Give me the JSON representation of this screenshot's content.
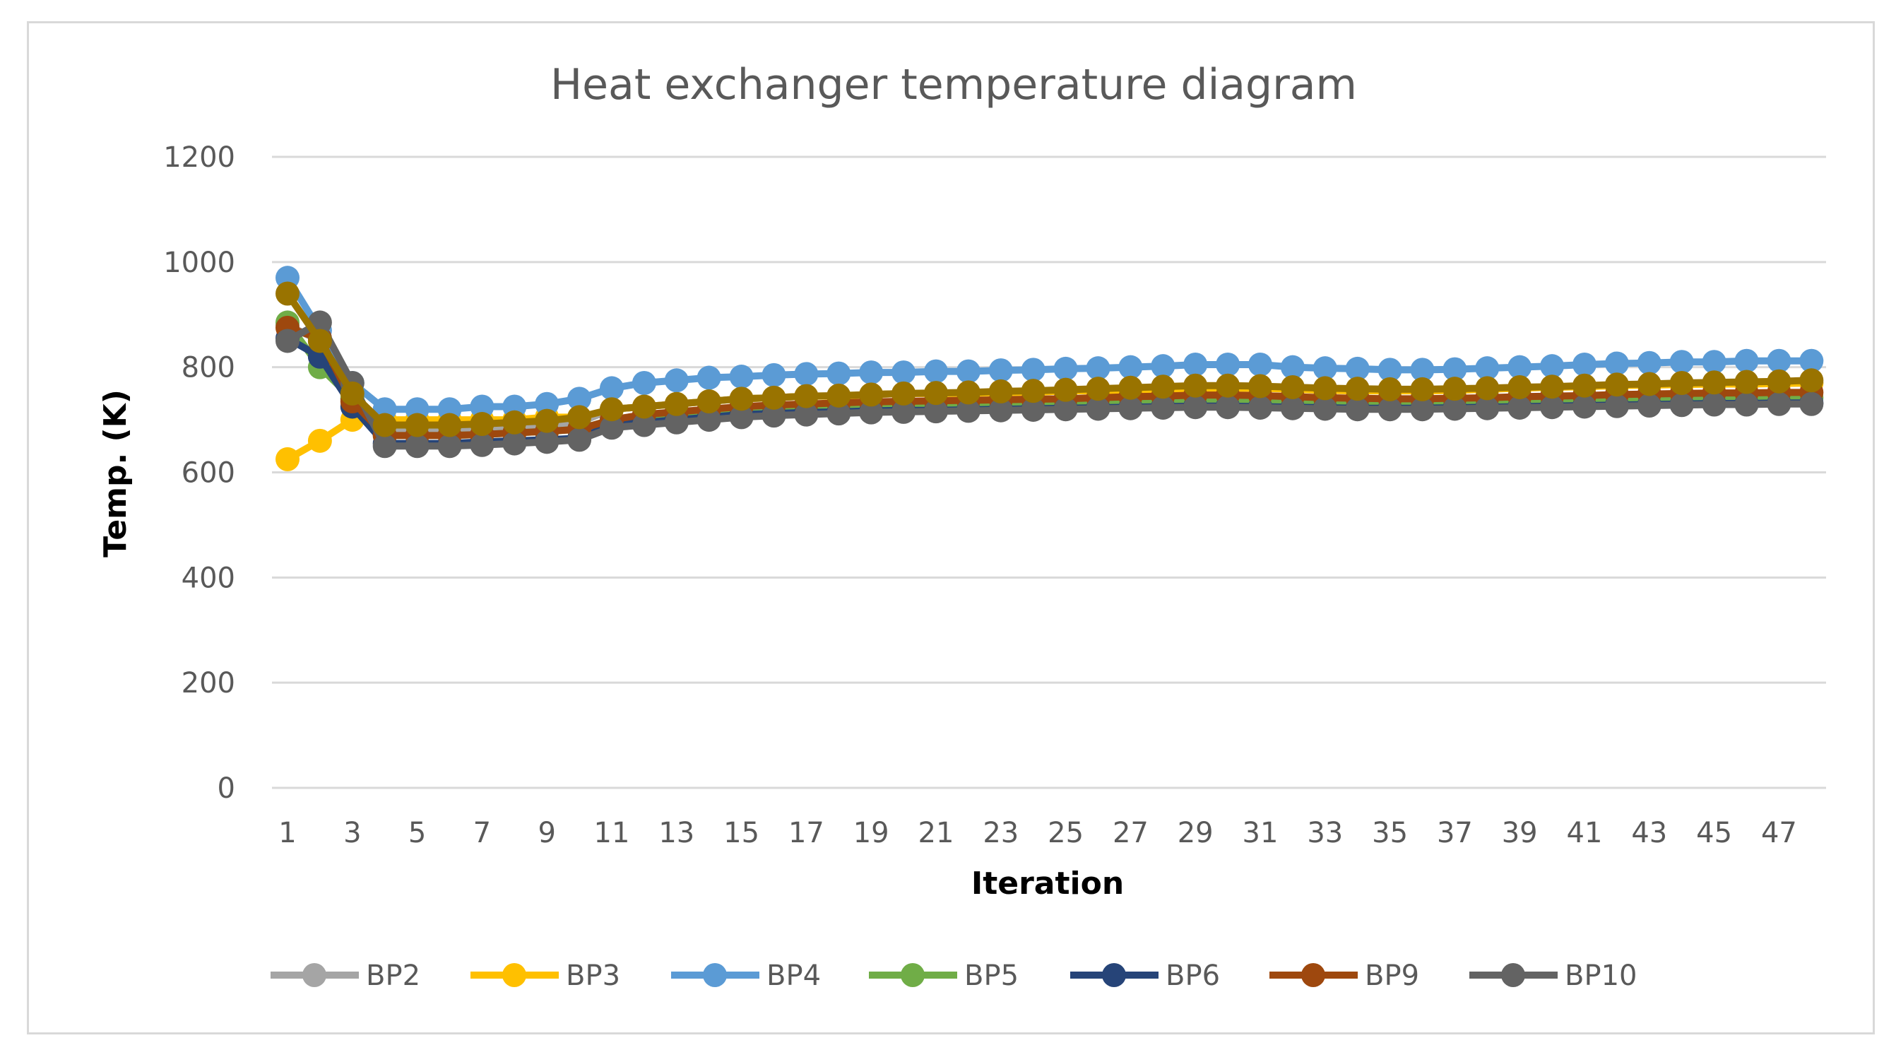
{
  "chart_data": {
    "type": "line",
    "title": "Heat exchanger temperature diagram",
    "xlabel": "Iteration",
    "ylabel": "Temp. (K)",
    "ylim": [
      0,
      1200
    ],
    "yticks": [
      0,
      200,
      400,
      600,
      800,
      1000,
      1200
    ],
    "x": [
      1,
      2,
      3,
      4,
      5,
      6,
      7,
      8,
      9,
      10,
      11,
      12,
      13,
      14,
      15,
      16,
      17,
      18,
      19,
      20,
      21,
      22,
      23,
      24,
      25,
      26,
      27,
      28,
      29,
      30,
      31,
      32,
      33,
      34,
      35,
      36,
      37,
      38,
      39,
      40,
      41,
      42,
      43,
      44,
      45,
      46,
      47,
      48
    ],
    "xtick_labels": [
      "1",
      "3",
      "5",
      "7",
      "9",
      "11",
      "13",
      "15",
      "17",
      "19",
      "21",
      "23",
      "25",
      "27",
      "29",
      "31",
      "33",
      "35",
      "37",
      "39",
      "41",
      "43",
      "45",
      "47"
    ],
    "grid": true,
    "legend_position": "bottom",
    "series": [
      {
        "name": "BP2",
        "color": "#a5a5a5",
        "values": [
          880,
          850,
          740,
          680,
          680,
          680,
          680,
          685,
          690,
          695,
          720,
          725,
          730,
          735,
          740,
          742,
          745,
          745,
          748,
          750,
          750,
          750,
          752,
          752,
          755,
          755,
          757,
          758,
          760,
          760,
          760,
          758,
          756,
          755,
          755,
          755,
          756,
          758,
          760,
          762,
          763,
          765,
          766,
          767,
          768,
          768,
          769,
          770
        ]
      },
      {
        "name": "BP3",
        "color": "#ffc000",
        "values": [
          625,
          660,
          700,
          700,
          700,
          700,
          700,
          700,
          705,
          705,
          720,
          725,
          730,
          735,
          740,
          742,
          745,
          745,
          748,
          750,
          750,
          750,
          752,
          752,
          755,
          755,
          757,
          758,
          760,
          760,
          760,
          758,
          756,
          755,
          755,
          755,
          756,
          758,
          760,
          762,
          763,
          765,
          766,
          767,
          768,
          768,
          769,
          770
        ]
      },
      {
        "name": "BP4",
        "color": "#5b9bd5",
        "values": [
          970,
          870,
          770,
          720,
          720,
          720,
          725,
          725,
          730,
          740,
          760,
          770,
          775,
          780,
          782,
          785,
          787,
          788,
          790,
          790,
          792,
          792,
          794,
          795,
          797,
          798,
          800,
          802,
          805,
          805,
          805,
          800,
          798,
          797,
          795,
          795,
          796,
          798,
          800,
          802,
          805,
          807,
          808,
          810,
          810,
          812,
          812,
          812
        ]
      },
      {
        "name": "BP5",
        "color": "#70ad47",
        "values": [
          885,
          800,
          740,
          670,
          670,
          670,
          672,
          675,
          678,
          682,
          700,
          705,
          710,
          715,
          720,
          722,
          724,
          725,
          727,
          728,
          728,
          729,
          730,
          731,
          732,
          733,
          735,
          736,
          738,
          738,
          737,
          736,
          734,
          733,
          732,
          732,
          733,
          734,
          735,
          736,
          737,
          738,
          739,
          740,
          741,
          741,
          742,
          742
        ]
      },
      {
        "name": "BP6",
        "color": "#264478",
        "values": [
          855,
          820,
          725,
          655,
          655,
          655,
          658,
          660,
          662,
          665,
          690,
          695,
          700,
          705,
          710,
          712,
          714,
          715,
          717,
          718,
          718,
          719,
          720,
          721,
          722,
          723,
          724,
          725,
          726,
          726,
          725,
          724,
          723,
          722,
          722,
          722,
          723,
          724,
          725,
          726,
          727,
          728,
          729,
          730,
          731,
          731,
          732,
          732
        ]
      },
      {
        "name": "BP9",
        "color": "#9e480e",
        "values": [
          875,
          855,
          735,
          670,
          670,
          670,
          672,
          675,
          678,
          682,
          700,
          710,
          715,
          720,
          725,
          728,
          730,
          732,
          734,
          735,
          736,
          737,
          738,
          739,
          740,
          742,
          744,
          745,
          747,
          747,
          746,
          744,
          742,
          741,
          740,
          740,
          741,
          742,
          744,
          745,
          746,
          748,
          749,
          750,
          751,
          751,
          752,
          752
        ]
      },
      {
        "name": "BP10",
        "color": "#636363",
        "values": [
          850,
          885,
          770,
          650,
          650,
          650,
          652,
          655,
          658,
          662,
          685,
          690,
          695,
          700,
          705,
          708,
          710,
          712,
          714,
          715,
          716,
          717,
          718,
          719,
          720,
          721,
          722,
          723,
          724,
          724,
          723,
          722,
          721,
          720,
          720,
          720,
          721,
          722,
          723,
          724,
          725,
          726,
          727,
          728,
          729,
          729,
          730,
          730
        ]
      },
      {
        "name": "",
        "color": "#997300",
        "values": [
          940,
          850,
          750,
          690,
          690,
          690,
          692,
          695,
          698,
          705,
          720,
          725,
          730,
          735,
          740,
          742,
          745,
          746,
          748,
          750,
          751,
          752,
          754,
          755,
          757,
          759,
          761,
          763,
          765,
          765,
          764,
          762,
          760,
          759,
          758,
          758,
          759,
          760,
          762,
          763,
          765,
          767,
          768,
          770,
          771,
          772,
          773,
          775
        ]
      }
    ]
  }
}
